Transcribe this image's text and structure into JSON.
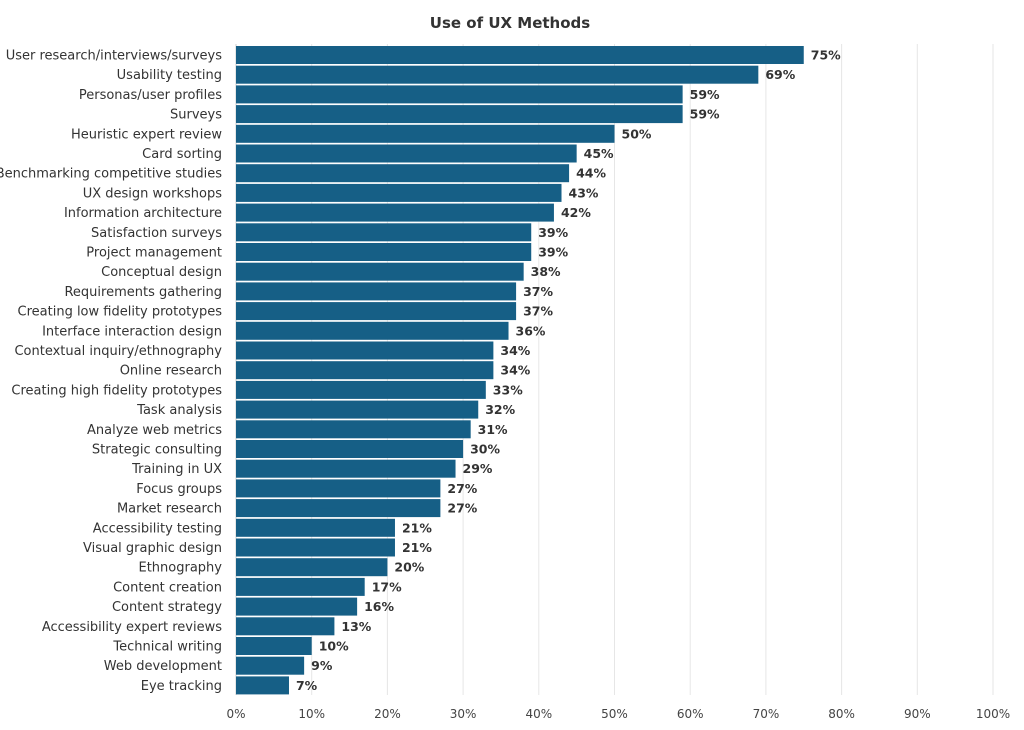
{
  "chart_data": {
    "type": "bar",
    "orientation": "horizontal",
    "title": "Use of UX Methods",
    "xlabel": "",
    "ylabel": "",
    "xlim": [
      0,
      100
    ],
    "ticks": [
      "0%",
      "10%",
      "20%",
      "30%",
      "40%",
      "50%",
      "60%",
      "70%",
      "80%",
      "90%",
      "100%"
    ],
    "grid": "vertical",
    "legend": "none",
    "bar_color": "#165f86",
    "categories": [
      "User research/interviews/surveys",
      "Usability testing",
      "Personas/user profiles",
      "Surveys",
      "Heuristic expert review",
      "Card sorting",
      "Benchmarking competitive studies",
      "UX design workshops",
      "Information architecture",
      "Satisfaction surveys",
      "Project management",
      "Conceptual design",
      "Requirements gathering",
      "Creating low fidelity prototypes",
      "Interface interaction design",
      "Contextual inquiry/ethnography",
      "Online research",
      "Creating high fidelity prototypes",
      "Task analysis",
      "Analyze web metrics",
      "Strategic consulting",
      "Training in UX",
      "Focus groups",
      "Market research",
      "Accessibility testing",
      "Visual graphic design",
      "Ethnography",
      "Content creation",
      "Content strategy",
      "Accessibility expert reviews",
      "Technical writing",
      "Web development",
      "Eye tracking"
    ],
    "values": [
      75,
      69,
      59,
      59,
      50,
      45,
      44,
      43,
      42,
      39,
      39,
      38,
      37,
      37,
      36,
      34,
      34,
      33,
      32,
      31,
      30,
      29,
      27,
      27,
      21,
      21,
      20,
      17,
      16,
      13,
      10,
      9,
      7
    ],
    "value_labels": [
      "75%",
      "69%",
      "59%",
      "59%",
      "50%",
      "45%",
      "44%",
      "43%",
      "42%",
      "39%",
      "39%",
      "38%",
      "37%",
      "37%",
      "36%",
      "34%",
      "34%",
      "33%",
      "32%",
      "31%",
      "30%",
      "29%",
      "27%",
      "27%",
      "21%",
      "21%",
      "20%",
      "17%",
      "16%",
      "13%",
      "10%",
      "9%",
      "7%"
    ]
  }
}
